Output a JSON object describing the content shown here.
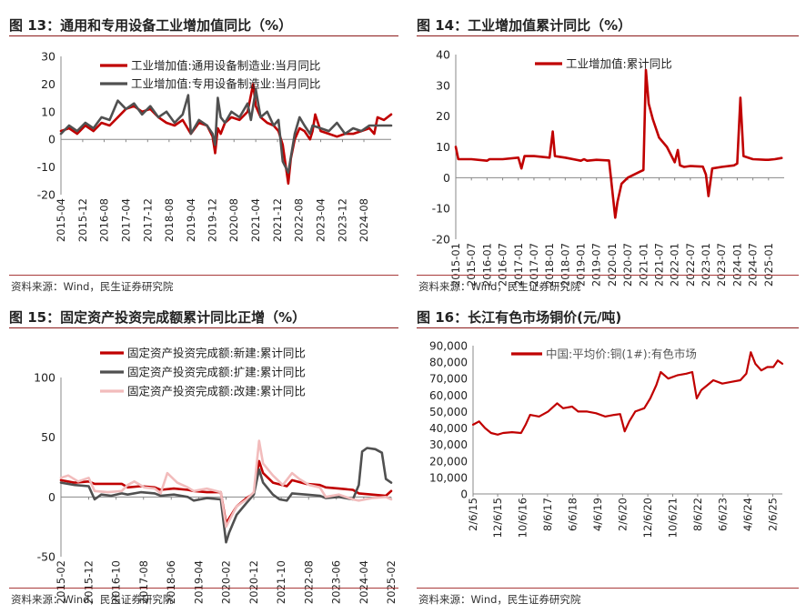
{
  "panels": [
    {
      "title": "图 13：通用和专用设备工业增加值同比（%）",
      "source": "资料来源：Wind，民生证券研究院"
    },
    {
      "title": "图 14：工业增加值累计同比（%）",
      "source": "资料来源：Wind，民生证券研究院"
    },
    {
      "title": "图 15：固定资产投资完成额累计同比正增（%）",
      "source": "资料来源：Wind，民生证券研究院"
    },
    {
      "title": "图 16：长江有色市场铜价(元/吨)",
      "source": "资料来源：Wind，民生证券研究院"
    }
  ],
  "colors": {
    "red": "#c00000",
    "dark": "#505050",
    "pink": "#f2bcbc",
    "rule": "#8b1a1a"
  },
  "chart_data": [
    {
      "type": "line",
      "title": "图 13：通用和专用设备工业增加值同比（%）",
      "ylim": [
        -20,
        30
      ],
      "yticks": [
        -20,
        -10,
        0,
        10,
        20,
        30
      ],
      "xlim": [
        2015.25,
        2025.42
      ],
      "xticks": [
        {
          "v": 2015.25,
          "label": "2015-04"
        },
        {
          "v": 2015.92,
          "label": "2015-12"
        },
        {
          "v": 2016.58,
          "label": "2016-08"
        },
        {
          "v": 2017.25,
          "label": "2017-04"
        },
        {
          "v": 2017.92,
          "label": "2017-12"
        },
        {
          "v": 2018.58,
          "label": "2018-08"
        },
        {
          "v": 2019.25,
          "label": "2019-04"
        },
        {
          "v": 2019.92,
          "label": "2019-12"
        },
        {
          "v": 2020.58,
          "label": "2020-08"
        },
        {
          "v": 2021.25,
          "label": "2021-04"
        },
        {
          "v": 2021.92,
          "label": "2021-12"
        },
        {
          "v": 2022.58,
          "label": "2022-08"
        },
        {
          "v": 2023.25,
          "label": "2023-04"
        },
        {
          "v": 2023.92,
          "label": "2023-12"
        },
        {
          "v": 2024.58,
          "label": "2024-08"
        }
      ],
      "series": [
        {
          "name": "工业增加值:通用设备制造业:当月同比",
          "color": "#c00000",
          "width": 2.6,
          "x": [
            2015.25,
            2015.5,
            2015.75,
            2016.0,
            2016.25,
            2016.5,
            2016.75,
            2017.0,
            2017.25,
            2017.5,
            2017.75,
            2018.0,
            2018.25,
            2018.5,
            2018.75,
            2019.0,
            2019.25,
            2019.5,
            2019.75,
            2019.92,
            2020.0,
            2020.08,
            2020.17,
            2020.3,
            2020.5,
            2020.75,
            2021.0,
            2021.17,
            2021.25,
            2021.4,
            2021.6,
            2021.8,
            2021.95,
            2022.08,
            2022.25,
            2022.33,
            2022.45,
            2022.6,
            2022.75,
            2022.92,
            2023.0,
            2023.08,
            2023.25,
            2023.5,
            2023.75,
            2024.0,
            2024.25,
            2024.5,
            2024.75,
            2024.9,
            2025.0,
            2025.2,
            2025.42
          ],
          "y": [
            3,
            4,
            2,
            5,
            3,
            6,
            5,
            8,
            11,
            12,
            10,
            11,
            8,
            6,
            5,
            7,
            2,
            6,
            5,
            1,
            -5,
            4,
            2,
            6,
            8,
            7,
            10,
            20,
            12,
            8,
            6,
            5,
            3,
            -2,
            -16,
            -7,
            0,
            4,
            3,
            0,
            3,
            9,
            3,
            2,
            1,
            2,
            2,
            3,
            4,
            2,
            8,
            7,
            9
          ]
        },
        {
          "name": "工业增加值:专用设备制造业:当月同比",
          "color": "#505050",
          "width": 2.6,
          "x": [
            2015.25,
            2015.5,
            2015.75,
            2016.0,
            2016.25,
            2016.5,
            2016.75,
            2017.0,
            2017.25,
            2017.5,
            2017.75,
            2018.0,
            2018.25,
            2018.5,
            2018.75,
            2019.0,
            2019.17,
            2019.25,
            2019.5,
            2019.75,
            2019.92,
            2020.0,
            2020.08,
            2020.17,
            2020.3,
            2020.5,
            2020.75,
            2021.0,
            2021.1,
            2021.25,
            2021.4,
            2021.6,
            2021.8,
            2021.95,
            2022.08,
            2022.25,
            2022.45,
            2022.6,
            2022.75,
            2022.92,
            2023.0,
            2023.25,
            2023.5,
            2023.75,
            2024.0,
            2024.25,
            2024.5,
            2024.75,
            2025.0,
            2025.42
          ],
          "y": [
            2,
            5,
            3,
            6,
            4,
            8,
            7,
            14,
            11,
            13,
            9,
            12,
            8,
            10,
            6,
            9,
            16,
            2,
            7,
            5,
            2,
            -2,
            15,
            8,
            6,
            10,
            8,
            13,
            7,
            18,
            8,
            10,
            5,
            7,
            -8,
            -12,
            2,
            8,
            5,
            2,
            5,
            4,
            3,
            6,
            2,
            4,
            3,
            5,
            5,
            5
          ]
        }
      ]
    },
    {
      "type": "line",
      "title": "图 14：工业增加值累计同比（%）",
      "ylim": [
        -20,
        40
      ],
      "yticks": [
        -20,
        -10,
        0,
        10,
        20,
        30,
        40
      ],
      "xlim": [
        2015.0,
        2025.5
      ],
      "xticks": [
        {
          "v": 2015.0,
          "label": "2015-01"
        },
        {
          "v": 2015.5,
          "label": "2015-07"
        },
        {
          "v": 2016.0,
          "label": "2016-01"
        },
        {
          "v": 2016.5,
          "label": "2016-07"
        },
        {
          "v": 2017.0,
          "label": "2017-01"
        },
        {
          "v": 2017.5,
          "label": "2017-07"
        },
        {
          "v": 2018.0,
          "label": "2018-01"
        },
        {
          "v": 2018.5,
          "label": "2018-07"
        },
        {
          "v": 2019.0,
          "label": "2019-01"
        },
        {
          "v": 2019.5,
          "label": "2019-07"
        },
        {
          "v": 2020.0,
          "label": "2020-01"
        },
        {
          "v": 2020.5,
          "label": "2020-07"
        },
        {
          "v": 2021.0,
          "label": "2021-01"
        },
        {
          "v": 2021.5,
          "label": "2021-07"
        },
        {
          "v": 2022.0,
          "label": "2022-01"
        },
        {
          "v": 2022.5,
          "label": "2022-07"
        },
        {
          "v": 2023.0,
          "label": "2023-01"
        },
        {
          "v": 2023.5,
          "label": "2023-07"
        },
        {
          "v": 2024.0,
          "label": "2024-01"
        },
        {
          "v": 2024.5,
          "label": "2024-07"
        },
        {
          "v": 2025.0,
          "label": "2025-01"
        }
      ],
      "series": [
        {
          "name": "工业增加值:累计同比",
          "color": "#c00000",
          "width": 2.6,
          "x": [
            2015.0,
            2015.08,
            2015.5,
            2016.0,
            2016.08,
            2016.5,
            2017.0,
            2017.1,
            2017.2,
            2017.5,
            2018.0,
            2018.1,
            2018.17,
            2018.3,
            2018.5,
            2019.0,
            2019.1,
            2019.2,
            2019.5,
            2019.9,
            2020.1,
            2020.17,
            2020.3,
            2020.5,
            2020.9,
            2021.0,
            2021.08,
            2021.17,
            2021.3,
            2021.5,
            2021.75,
            2022.0,
            2022.1,
            2022.17,
            2022.3,
            2022.5,
            2022.9,
            2023.0,
            2023.08,
            2023.2,
            2023.5,
            2023.9,
            2024.0,
            2024.1,
            2024.2,
            2024.5,
            2024.9,
            2025.0,
            2025.2,
            2025.42
          ],
          "y": [
            10,
            6,
            6,
            5.5,
            6,
            6,
            6.5,
            3,
            7,
            7,
            6.5,
            15,
            7,
            6.8,
            6.5,
            5.5,
            6,
            5.5,
            5.8,
            5.6,
            -13,
            -8,
            -2,
            0,
            2,
            2.5,
            35,
            24,
            19,
            13,
            10,
            5,
            9,
            4,
            3.5,
            3.8,
            3.6,
            1,
            -6,
            3,
            3.5,
            4,
            4.6,
            26,
            7,
            6,
            5.8,
            5.8,
            6,
            6.4
          ]
        }
      ]
    },
    {
      "type": "line",
      "title": "图 15：固定资产投资完成额累计同比正增（%）",
      "ylim": [
        -50,
        100
      ],
      "yticks": [
        -50,
        0,
        50,
        100
      ],
      "xlim": [
        2015.08,
        2025.08
      ],
      "xticks": [
        {
          "v": 2015.08,
          "label": "2015-02"
        },
        {
          "v": 2015.92,
          "label": "2015-12"
        },
        {
          "v": 2016.75,
          "label": "2016-10"
        },
        {
          "v": 2017.58,
          "label": "2017-08"
        },
        {
          "v": 2018.42,
          "label": "2018-06"
        },
        {
          "v": 2019.25,
          "label": "2019-04"
        },
        {
          "v": 2020.08,
          "label": "2020-02"
        },
        {
          "v": 2020.92,
          "label": "2020-12"
        },
        {
          "v": 2021.75,
          "label": "2021-10"
        },
        {
          "v": 2022.58,
          "label": "2022-08"
        },
        {
          "v": 2023.42,
          "label": "2023-06"
        },
        {
          "v": 2024.25,
          "label": "2024-04"
        },
        {
          "v": 2025.08,
          "label": "2025-02"
        }
      ],
      "series": [
        {
          "name": "固定资产投资完成额:新建:累计同比",
          "color": "#c00000",
          "width": 2.6,
          "x": [
            2015.08,
            2015.5,
            2015.92,
            2016.1,
            2016.5,
            2016.92,
            2017.1,
            2017.5,
            2017.92,
            2018.1,
            2018.5,
            2018.92,
            2019.1,
            2019.5,
            2019.92,
            2020.08,
            2020.17,
            2020.4,
            2020.7,
            2020.92,
            2021.08,
            2021.2,
            2021.5,
            2021.92,
            2022.08,
            2022.5,
            2022.92,
            2023.1,
            2023.5,
            2023.92,
            2024.1,
            2024.5,
            2024.92,
            2025.08
          ],
          "y": [
            14,
            12,
            13,
            11,
            11,
            11,
            8,
            9,
            8,
            6,
            7,
            6,
            5,
            4,
            4,
            -22,
            -18,
            -8,
            -1,
            3,
            30,
            20,
            12,
            9,
            14,
            11,
            10,
            8,
            7,
            6,
            3,
            2,
            1,
            5
          ]
        },
        {
          "name": "固定资产投资完成额:扩建:累计同比",
          "color": "#505050",
          "width": 2.6,
          "x": [
            2015.08,
            2015.5,
            2015.92,
            2016.1,
            2016.3,
            2016.6,
            2016.92,
            2017.1,
            2017.5,
            2017.92,
            2018.1,
            2018.5,
            2018.92,
            2019.1,
            2019.5,
            2019.92,
            2020.08,
            2020.17,
            2020.4,
            2020.7,
            2020.92,
            2021.08,
            2021.2,
            2021.5,
            2021.7,
            2021.92,
            2022.08,
            2022.5,
            2022.92,
            2023.1,
            2023.5,
            2023.92,
            2024.1,
            2024.2,
            2024.35,
            2024.6,
            2024.8,
            2024.92,
            2025.08
          ],
          "y": [
            12,
            10,
            9,
            -2,
            2,
            1,
            3,
            2,
            4,
            3,
            1,
            2,
            0,
            -3,
            -1,
            -2,
            -38,
            -30,
            -15,
            -5,
            2,
            23,
            12,
            2,
            -2,
            -3,
            3,
            2,
            1,
            -1,
            0,
            -2,
            10,
            38,
            41,
            40,
            37,
            15,
            12
          ]
        },
        {
          "name": "固定资产投资完成额:改建:累计同比",
          "color": "#f2bcbc",
          "width": 2.6,
          "x": [
            2015.08,
            2015.3,
            2015.6,
            2015.92,
            2016.1,
            2016.5,
            2016.92,
            2017.1,
            2017.3,
            2017.6,
            2017.92,
            2018.1,
            2018.3,
            2018.6,
            2018.92,
            2019.1,
            2019.5,
            2019.92,
            2020.08,
            2020.17,
            2020.4,
            2020.7,
            2020.92,
            2021.08,
            2021.2,
            2021.5,
            2021.8,
            2022.08,
            2022.3,
            2022.6,
            2022.92,
            2023.1,
            2023.5,
            2023.92,
            2024.1,
            2024.5,
            2024.92,
            2025.08
          ],
          "y": [
            16,
            18,
            13,
            16,
            5,
            4,
            5,
            10,
            13,
            8,
            7,
            3,
            20,
            12,
            8,
            5,
            7,
            4,
            -25,
            -20,
            -8,
            -2,
            4,
            47,
            28,
            18,
            10,
            20,
            15,
            10,
            8,
            0,
            2,
            -2,
            -3,
            -1,
            0,
            -2
          ]
        }
      ]
    },
    {
      "type": "line",
      "title": "图 16：长江有色市场铜价(元/吨)",
      "ylim": [
        0,
        90000
      ],
      "yticks": [
        0,
        10000,
        20000,
        30000,
        40000,
        50000,
        60000,
        70000,
        80000,
        90000
      ],
      "ytickLabels": [
        "0",
        "10,000",
        "20,000",
        "30,000",
        "40,000",
        "50,000",
        "60,000",
        "70,000",
        "80,000",
        "90,000"
      ],
      "xlim": [
        2015.1,
        2025.4
      ],
      "xticks": [
        {
          "v": 2015.1,
          "label": "2/6/15"
        },
        {
          "v": 2015.92,
          "label": "12/6/15"
        },
        {
          "v": 2016.75,
          "label": "10/6/16"
        },
        {
          "v": 2017.58,
          "label": "8/6/17"
        },
        {
          "v": 2018.42,
          "label": "6/6/18"
        },
        {
          "v": 2019.25,
          "label": "4/6/19"
        },
        {
          "v": 2020.08,
          "label": "2/6/20"
        },
        {
          "v": 2020.92,
          "label": "12/6/20"
        },
        {
          "v": 2021.75,
          "label": "10/6/21"
        },
        {
          "v": 2022.58,
          "label": "8/6/22"
        },
        {
          "v": 2023.42,
          "label": "6/6/23"
        },
        {
          "v": 2024.25,
          "label": "4/6/24"
        },
        {
          "v": 2025.08,
          "label": "2/6/25"
        }
      ],
      "series": [
        {
          "name": "中国:平均价:铜(1#):有色市场",
          "color": "#c00000",
          "width": 2.2,
          "x": [
            2015.1,
            2015.3,
            2015.5,
            2015.7,
            2015.92,
            2016.1,
            2016.4,
            2016.7,
            2016.85,
            2017.0,
            2017.3,
            2017.6,
            2017.9,
            2018.1,
            2018.4,
            2018.6,
            2018.9,
            2019.2,
            2019.5,
            2019.8,
            2020.0,
            2020.15,
            2020.3,
            2020.5,
            2020.8,
            2021.0,
            2021.2,
            2021.35,
            2021.6,
            2021.9,
            2022.2,
            2022.4,
            2022.55,
            2022.7,
            2022.9,
            2023.1,
            2023.4,
            2023.7,
            2024.0,
            2024.2,
            2024.35,
            2024.5,
            2024.7,
            2024.9,
            2025.1,
            2025.25,
            2025.4
          ],
          "y": [
            42000,
            44000,
            40000,
            37000,
            36000,
            37000,
            37500,
            37000,
            42000,
            48000,
            47000,
            50000,
            55000,
            52000,
            53000,
            50000,
            50000,
            49000,
            47000,
            48000,
            48500,
            38000,
            44000,
            50000,
            52000,
            58000,
            66000,
            74000,
            70000,
            72000,
            73000,
            74000,
            58000,
            63000,
            66000,
            69000,
            67000,
            68000,
            69000,
            73000,
            86000,
            79000,
            75000,
            77000,
            77000,
            81000,
            79000
          ]
        }
      ]
    }
  ]
}
